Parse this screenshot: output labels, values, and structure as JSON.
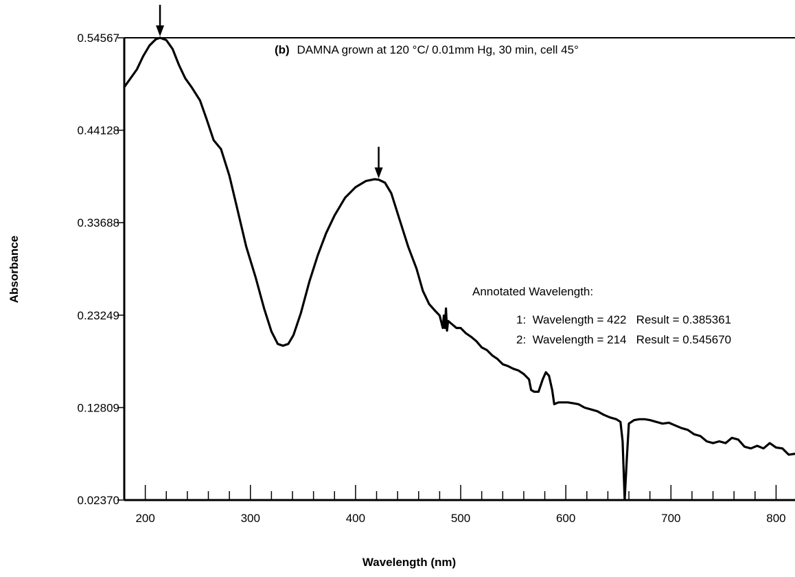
{
  "chart_data": {
    "type": "line",
    "title_tag": "(b)",
    "title": "DAMNA grown at 120 °C/ 0.01mm  Hg, 30 min, cell 45°",
    "xlabel": "Wavelength (nm)",
    "ylabel": "Absorbance",
    "xlim": [
      180,
      818
    ],
    "ylim": [
      0.0237,
      0.54567
    ],
    "x_ticks": [
      200,
      300,
      400,
      500,
      600,
      700,
      800
    ],
    "x_tick_labels": [
      "200",
      "300",
      "400",
      "500",
      "600",
      "700",
      "800"
    ],
    "y_ticks": [
      0.0237,
      0.12809,
      0.23249,
      0.33688,
      0.44128,
      0.54567
    ],
    "y_tick_labels": [
      "0.02370",
      "0.12809",
      "0.23249",
      "0.33688",
      "0.44128",
      "0.54567"
    ],
    "grid": false,
    "annotations": {
      "heading": "Annotated Wavelength:",
      "lines": [
        "1:  Wavelength = 422   Result = 0.385361",
        "2:  Wavelength = 214   Result = 0.545670"
      ]
    },
    "markers": [
      {
        "x": 214,
        "y": 0.54567
      },
      {
        "x": 422,
        "y": 0.385361
      }
    ],
    "series": [
      {
        "points": [
          [
            180,
            0.49
          ],
          [
            186,
            0.5
          ],
          [
            192,
            0.51
          ],
          [
            198,
            0.525
          ],
          [
            204,
            0.537
          ],
          [
            210,
            0.544
          ],
          [
            214,
            0.5457
          ],
          [
            220,
            0.543
          ],
          [
            226,
            0.533
          ],
          [
            232,
            0.515
          ],
          [
            238,
            0.5
          ],
          [
            244,
            0.49
          ],
          [
            252,
            0.475
          ],
          [
            258,
            0.455
          ],
          [
            265,
            0.43
          ],
          [
            272,
            0.42
          ],
          [
            280,
            0.39
          ],
          [
            288,
            0.35
          ],
          [
            296,
            0.31
          ],
          [
            305,
            0.275
          ],
          [
            313,
            0.24
          ],
          [
            320,
            0.214
          ],
          [
            326,
            0.2
          ],
          [
            331,
            0.198
          ],
          [
            336,
            0.2
          ],
          [
            341,
            0.21
          ],
          [
            348,
            0.235
          ],
          [
            356,
            0.27
          ],
          [
            364,
            0.3
          ],
          [
            372,
            0.325
          ],
          [
            380,
            0.345
          ],
          [
            390,
            0.365
          ],
          [
            400,
            0.377
          ],
          [
            410,
            0.384
          ],
          [
            418,
            0.386
          ],
          [
            422,
            0.3854
          ],
          [
            428,
            0.382
          ],
          [
            434,
            0.37
          ],
          [
            442,
            0.34
          ],
          [
            450,
            0.31
          ],
          [
            458,
            0.285
          ],
          [
            464,
            0.26
          ],
          [
            470,
            0.245
          ],
          [
            476,
            0.237
          ],
          [
            480,
            0.232
          ],
          [
            483,
            0.218
          ],
          [
            484,
            0.232
          ],
          [
            485,
            0.218
          ],
          [
            486,
            0.24
          ],
          [
            487,
            0.215
          ],
          [
            488,
            0.226
          ],
          [
            492,
            0.222
          ],
          [
            496,
            0.218
          ],
          [
            500,
            0.218
          ],
          [
            505,
            0.212
          ],
          [
            510,
            0.208
          ],
          [
            515,
            0.203
          ],
          [
            520,
            0.196
          ],
          [
            525,
            0.193
          ],
          [
            530,
            0.187
          ],
          [
            535,
            0.183
          ],
          [
            540,
            0.177
          ],
          [
            545,
            0.175
          ],
          [
            550,
            0.172
          ],
          [
            555,
            0.17
          ],
          [
            560,
            0.166
          ],
          [
            565,
            0.16
          ],
          [
            567,
            0.148
          ],
          [
            570,
            0.146
          ],
          [
            574,
            0.146
          ],
          [
            578,
            0.16
          ],
          [
            581,
            0.168
          ],
          [
            584,
            0.164
          ],
          [
            587,
            0.148
          ],
          [
            589,
            0.132
          ],
          [
            593,
            0.134
          ],
          [
            597,
            0.134
          ],
          [
            602,
            0.134
          ],
          [
            607,
            0.133
          ],
          [
            612,
            0.132
          ],
          [
            618,
            0.128
          ],
          [
            624,
            0.126
          ],
          [
            630,
            0.124
          ],
          [
            636,
            0.12
          ],
          [
            642,
            0.117
          ],
          [
            648,
            0.115
          ],
          [
            652,
            0.112
          ],
          [
            654,
            0.09
          ],
          [
            656,
            0.024
          ],
          [
            658,
            0.07
          ],
          [
            660,
            0.11
          ],
          [
            665,
            0.114
          ],
          [
            670,
            0.115
          ],
          [
            675,
            0.115
          ],
          [
            680,
            0.114
          ],
          [
            686,
            0.112
          ],
          [
            692,
            0.11
          ],
          [
            698,
            0.111
          ],
          [
            704,
            0.108
          ],
          [
            710,
            0.105
          ],
          [
            716,
            0.103
          ],
          [
            722,
            0.098
          ],
          [
            728,
            0.096
          ],
          [
            734,
            0.09
          ],
          [
            740,
            0.088
          ],
          [
            746,
            0.09
          ],
          [
            752,
            0.088
          ],
          [
            758,
            0.094
          ],
          [
            764,
            0.092
          ],
          [
            770,
            0.084
          ],
          [
            776,
            0.082
          ],
          [
            782,
            0.085
          ],
          [
            788,
            0.082
          ],
          [
            794,
            0.088
          ],
          [
            800,
            0.083
          ],
          [
            806,
            0.082
          ],
          [
            812,
            0.075
          ],
          [
            818,
            0.076
          ]
        ]
      }
    ]
  }
}
